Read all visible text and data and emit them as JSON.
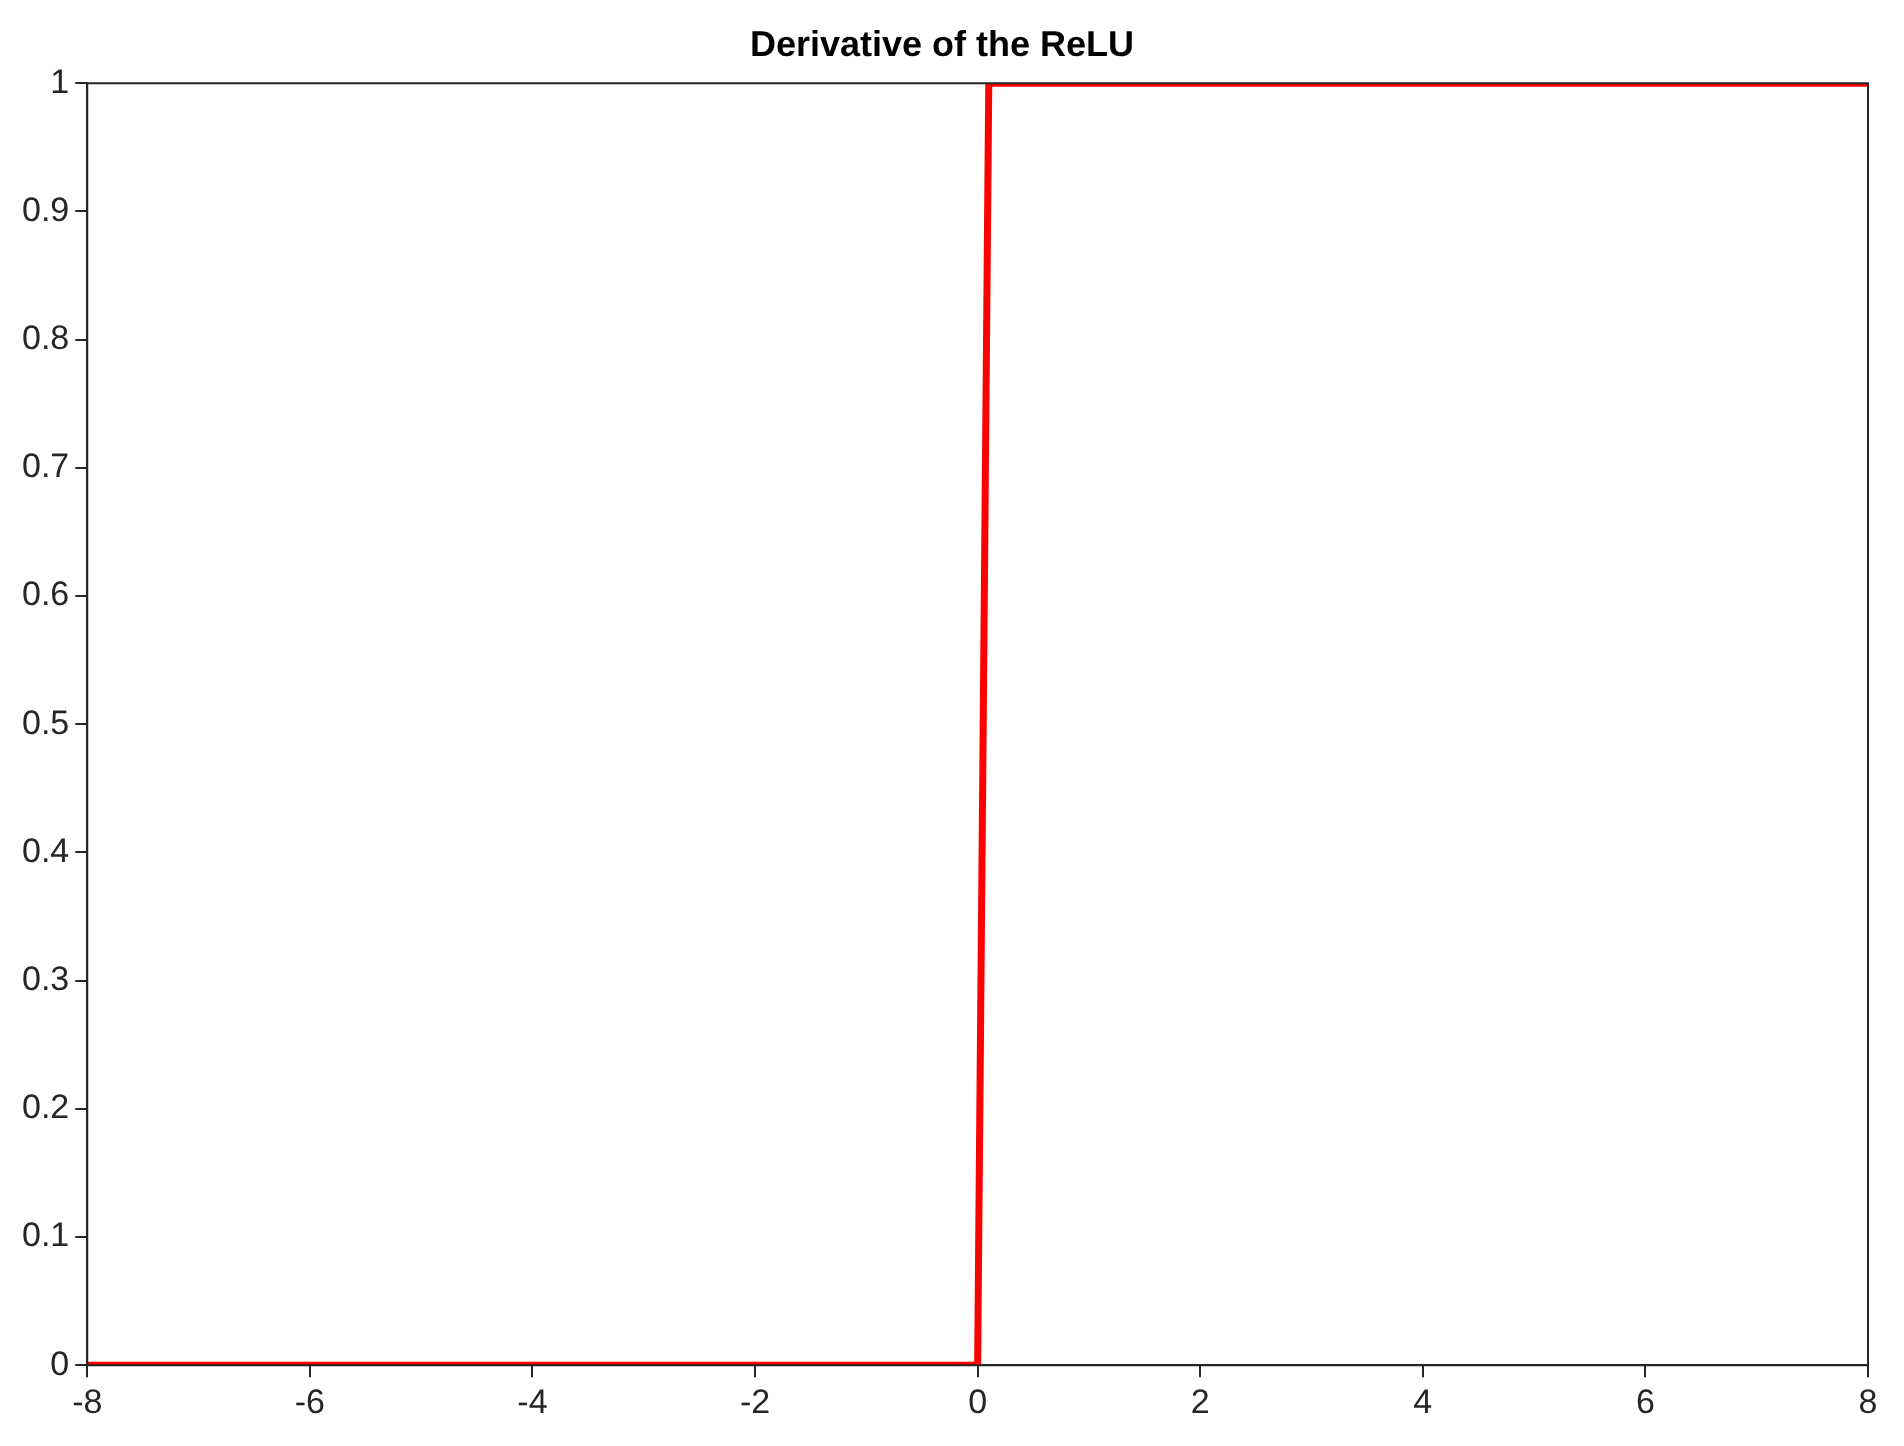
{
  "chart_data": {
    "type": "line",
    "title": "Derivative of the ReLU",
    "series": [
      {
        "color": "#ff0000",
        "x": [
          -8,
          0,
          0.1,
          8
        ],
        "values": [
          0,
          0,
          1,
          1
        ]
      }
    ],
    "xlim": [
      -8,
      8
    ],
    "xticks": [
      -8,
      -6,
      -4,
      -2,
      0,
      2,
      4,
      6,
      8
    ],
    "ylim": [
      0,
      1
    ],
    "yticks": [
      0,
      0.1,
      0.2,
      0.3,
      0.4,
      0.5,
      0.6,
      0.7,
      0.8,
      0.9,
      1
    ],
    "grid": false,
    "legend": false,
    "marker": "none",
    "line_style": "solid"
  }
}
